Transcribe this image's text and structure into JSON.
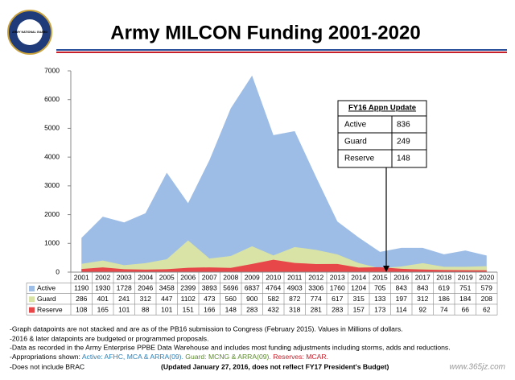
{
  "chart_data": {
    "type": "area",
    "title": "Army MILCON Funding 2001-2020",
    "categories": [
      "2001",
      "2002",
      "2003",
      "2004",
      "2005",
      "2006",
      "2007",
      "2008",
      "2009",
      "2010",
      "2011",
      "2012",
      "2013",
      "2014",
      "2015",
      "2016",
      "2017",
      "2018",
      "2019",
      "2020"
    ],
    "series": [
      {
        "name": "Active",
        "color": "#9dbde6",
        "values": [
          1190,
          1930,
          1728,
          2046,
          3458,
          2399,
          3893,
          5696,
          6837,
          4764,
          4903,
          3306,
          1760,
          1204,
          705,
          843,
          843,
          619,
          751,
          579
        ]
      },
      {
        "name": "Guard",
        "color": "#d9e3a6",
        "values": [
          286,
          401,
          241,
          312,
          447,
          1102,
          473,
          560,
          900,
          582,
          872,
          774,
          617,
          315,
          133,
          197,
          312,
          186,
          184,
          208
        ]
      },
      {
        "name": "Reserve",
        "color": "#e8474a",
        "values": [
          108,
          165,
          101,
          88,
          101,
          151,
          166,
          148,
          283,
          432,
          318,
          281,
          283,
          157,
          173,
          114,
          92,
          74,
          66,
          62
        ]
      }
    ],
    "ylim": [
      0,
      7000
    ],
    "yticks": [
      0,
      1000,
      2000,
      3000,
      4000,
      5000,
      6000,
      7000
    ],
    "grid": false
  },
  "logo": "ARMY NATIONAL GUARD",
  "inset": {
    "title": "FY16 Appn Update",
    "rows": [
      [
        "Active",
        "836"
      ],
      [
        "Guard",
        "249"
      ],
      [
        "Reserve",
        "148"
      ]
    ]
  },
  "notes": [
    "-Graph datapoints are not stacked and are as of the PB16 submission to Congress (February 2015).  Values in Millions of dollars.",
    "-2016 & later datapoints are budgeted or programmed proposals.",
    "-Data as recorded in the Army Enterprise PPBE Data Warehouse and includes most funding adjustments including storms, adds and reductions."
  ],
  "appropriations": {
    "prefix": "-Appropriations shown:",
    "active": "Active: AFHC, MCA & ARRA(09).",
    "guard": "Guard: MCNG & ARRA(09).",
    "reserve": "Reserves: MCAR."
  },
  "brac": "-Does not include BRAC",
  "updated": "(Updated January 27, 2016, does not reflect FY17 President's Budget)",
  "watermark": "www.365jz.com"
}
